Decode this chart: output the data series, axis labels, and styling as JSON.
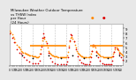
{
  "title": "Milwaukee Weather Outdoor Temperature\nvs THSW Index\nper Hour\n(24 Hours)",
  "bg_color": "#e8e8e8",
  "plot_bg": "#ffffff",
  "grid_color": "#aaaaaa",
  "ylim": [
    10,
    100
  ],
  "xlim": [
    0,
    240
  ],
  "yticks": [
    20,
    30,
    40,
    50,
    60,
    70,
    80,
    90
  ],
  "ytick_labels": [
    "2",
    "3",
    "4",
    "5",
    "6",
    "7",
    "8",
    "9"
  ],
  "temp_color": "#ff8800",
  "thsw_color": "#dd0000",
  "black_color": "#000000",
  "orange_color": "#ff8800",
  "vgrid_x": [
    24,
    48,
    72,
    96,
    120,
    144,
    168,
    192,
    216
  ],
  "temp_data": [
    [
      0,
      85
    ],
    [
      2,
      82
    ],
    [
      5,
      78
    ],
    [
      8,
      72
    ],
    [
      10,
      68
    ],
    [
      12,
      60
    ],
    [
      15,
      55
    ],
    [
      18,
      50
    ],
    [
      20,
      48
    ],
    [
      22,
      45
    ],
    [
      24,
      42
    ],
    [
      26,
      40
    ],
    [
      29,
      38
    ],
    [
      32,
      37
    ],
    [
      34,
      36
    ],
    [
      36,
      35
    ],
    [
      38,
      34
    ],
    [
      40,
      33
    ],
    [
      42,
      32
    ],
    [
      44,
      32
    ],
    [
      46,
      31
    ],
    [
      48,
      30
    ],
    [
      50,
      30
    ],
    [
      52,
      29
    ],
    [
      54,
      29
    ],
    [
      56,
      28
    ],
    [
      58,
      28
    ],
    [
      60,
      28
    ],
    [
      62,
      29
    ],
    [
      64,
      35
    ],
    [
      66,
      45
    ],
    [
      68,
      55
    ],
    [
      70,
      65
    ],
    [
      72,
      70
    ],
    [
      74,
      68
    ],
    [
      76,
      62
    ],
    [
      78,
      55
    ],
    [
      80,
      48
    ],
    [
      82,
      42
    ],
    [
      84,
      38
    ],
    [
      86,
      35
    ],
    [
      88,
      33
    ],
    [
      90,
      32
    ],
    [
      92,
      31
    ],
    [
      94,
      30
    ],
    [
      96,
      30
    ],
    [
      98,
      29
    ],
    [
      100,
      29
    ],
    [
      102,
      28
    ],
    [
      104,
      28
    ],
    [
      106,
      27
    ],
    [
      108,
      27
    ],
    [
      110,
      27
    ],
    [
      112,
      27
    ],
    [
      114,
      27
    ],
    [
      116,
      27
    ],
    [
      118,
      27
    ],
    [
      120,
      28
    ],
    [
      122,
      32
    ],
    [
      124,
      40
    ],
    [
      126,
      52
    ],
    [
      128,
      62
    ],
    [
      130,
      70
    ],
    [
      132,
      72
    ],
    [
      134,
      68
    ],
    [
      136,
      62
    ],
    [
      138,
      55
    ],
    [
      140,
      48
    ],
    [
      142,
      42
    ],
    [
      144,
      38
    ],
    [
      146,
      35
    ],
    [
      148,
      33
    ],
    [
      150,
      31
    ],
    [
      152,
      30
    ],
    [
      154,
      29
    ],
    [
      156,
      28
    ],
    [
      158,
      28
    ],
    [
      160,
      27
    ],
    [
      162,
      27
    ],
    [
      164,
      27
    ],
    [
      166,
      27
    ],
    [
      168,
      27
    ],
    [
      170,
      30
    ],
    [
      172,
      35
    ],
    [
      174,
      42
    ],
    [
      176,
      50
    ],
    [
      178,
      55
    ],
    [
      180,
      52
    ],
    [
      182,
      48
    ],
    [
      184,
      42
    ],
    [
      186,
      38
    ],
    [
      188,
      35
    ],
    [
      190,
      33
    ],
    [
      192,
      31
    ],
    [
      194,
      30
    ],
    [
      196,
      29
    ],
    [
      198,
      28
    ],
    [
      200,
      28
    ],
    [
      202,
      27
    ],
    [
      204,
      27
    ],
    [
      206,
      27
    ],
    [
      208,
      27
    ],
    [
      210,
      27
    ],
    [
      212,
      27
    ],
    [
      214,
      27
    ],
    [
      216,
      27
    ],
    [
      218,
      30
    ],
    [
      220,
      35
    ],
    [
      222,
      40
    ],
    [
      224,
      45
    ],
    [
      226,
      48
    ],
    [
      228,
      46
    ],
    [
      230,
      43
    ],
    [
      232,
      40
    ],
    [
      234,
      37
    ],
    [
      236,
      35
    ],
    [
      238,
      33
    ],
    [
      240,
      31
    ]
  ],
  "thsw_data": [
    [
      0,
      80
    ],
    [
      5,
      70
    ],
    [
      10,
      60
    ],
    [
      15,
      45
    ],
    [
      20,
      38
    ],
    [
      24,
      35
    ],
    [
      30,
      28
    ],
    [
      36,
      22
    ],
    [
      42,
      18
    ],
    [
      48,
      15
    ],
    [
      54,
      14
    ],
    [
      60,
      14
    ],
    [
      64,
      20
    ],
    [
      66,
      35
    ],
    [
      68,
      50
    ],
    [
      70,
      70
    ],
    [
      72,
      80
    ],
    [
      74,
      72
    ],
    [
      78,
      58
    ],
    [
      82,
      38
    ],
    [
      86,
      25
    ],
    [
      90,
      18
    ],
    [
      96,
      15
    ],
    [
      102,
      13
    ],
    [
      108,
      12
    ],
    [
      114,
      12
    ],
    [
      120,
      13
    ],
    [
      122,
      18
    ],
    [
      124,
      28
    ],
    [
      126,
      48
    ],
    [
      128,
      65
    ],
    [
      130,
      78
    ],
    [
      132,
      75
    ],
    [
      136,
      62
    ],
    [
      140,
      45
    ],
    [
      144,
      30
    ],
    [
      148,
      22
    ],
    [
      152,
      17
    ],
    [
      156,
      14
    ],
    [
      160,
      12
    ],
    [
      164,
      12
    ],
    [
      168,
      12
    ],
    [
      170,
      18
    ],
    [
      172,
      28
    ],
    [
      174,
      42
    ],
    [
      176,
      55
    ],
    [
      180,
      52
    ],
    [
      184,
      40
    ],
    [
      188,
      28
    ],
    [
      192,
      20
    ],
    [
      196,
      15
    ],
    [
      200,
      13
    ],
    [
      204,
      12
    ],
    [
      208,
      12
    ],
    [
      212,
      12
    ],
    [
      216,
      12
    ],
    [
      218,
      20
    ],
    [
      220,
      30
    ],
    [
      222,
      40
    ],
    [
      224,
      48
    ],
    [
      228,
      44
    ],
    [
      232,
      35
    ],
    [
      236,
      28
    ],
    [
      240,
      22
    ]
  ],
  "orange_hline_segments": [
    [
      [
        44,
        120
      ],
      [
        52,
        52
      ]
    ],
    [
      [
        170,
        240
      ],
      [
        52,
        52
      ]
    ]
  ],
  "black_dots": [
    [
      26,
      32
    ],
    [
      48,
      25
    ],
    [
      82,
      32
    ],
    [
      108,
      25
    ],
    [
      134,
      32
    ],
    [
      158,
      25
    ],
    [
      184,
      32
    ],
    [
      208,
      25
    ],
    [
      232,
      32
    ]
  ],
  "xtick_step": 5,
  "xtick_period": 24,
  "xtick_hour_labels": [
    0,
    5,
    10,
    15,
    20
  ]
}
